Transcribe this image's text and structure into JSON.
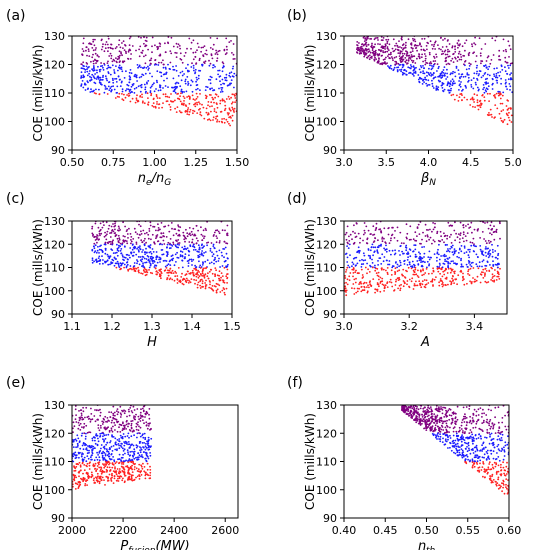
{
  "figure": {
    "colors": {
      "low": "#ff2020",
      "mid": "#1a1aff",
      "high": "#800080"
    },
    "panels": [
      {
        "id": "a"
      },
      {
        "id": "b"
      },
      {
        "id": "c"
      },
      {
        "id": "d"
      },
      {
        "id": "e"
      },
      {
        "id": "f"
      }
    ]
  },
  "chart_data": [
    {
      "panel_label": "(a)",
      "type": "scatter",
      "xlabel": "ne/nG",
      "xlabel_main": "n",
      "xlabel_sub1": "e",
      "xlabel_mid": "/n",
      "xlabel_sub2": "G",
      "ylabel": "COE (mills/kWh)",
      "xlim": [
        0.5,
        1.5
      ],
      "ylim": [
        90,
        130
      ],
      "xticks": [
        "0.50",
        "0.75",
        "1.00",
        "1.25",
        "1.50"
      ],
      "yticks": [
        "90",
        "100",
        "110",
        "120",
        "130"
      ],
      "color_bands": {
        "red_below": 110,
        "blue_below": 120
      },
      "point_cloud": {
        "x_range": [
          0.55,
          1.5
        ],
        "coe_floor_at_xmin": 111,
        "coe_floor_at_xmax": 98,
        "count": 900
      },
      "grid": false
    },
    {
      "panel_label": "(b)",
      "type": "scatter",
      "xlabel": "βN",
      "xlabel_main": "β",
      "xlabel_sub1": "N",
      "ylabel": "COE (mills/kWh)",
      "xlim": [
        3.0,
        5.0
      ],
      "ylim": [
        90,
        130
      ],
      "xticks": [
        "3.0",
        "3.5",
        "4.0",
        "4.5",
        "5.0"
      ],
      "yticks": [
        "90",
        "100",
        "110",
        "120",
        "130"
      ],
      "color_bands": {
        "red_below": 110,
        "blue_below": 120
      },
      "point_cloud": {
        "x_range": [
          3.15,
          5.0
        ],
        "coe_floor_at_xmin": 124,
        "coe_floor_at_xmax": 98,
        "count": 900
      },
      "grid": false
    },
    {
      "panel_label": "(c)",
      "type": "scatter",
      "xlabel": "H",
      "xlabel_main": "H",
      "ylabel": "COE (mills/kWh)",
      "xlim": [
        1.1,
        1.5
      ],
      "ylim": [
        90,
        130
      ],
      "xticks": [
        "1.1",
        "1.2",
        "1.3",
        "1.4",
        "1.5"
      ],
      "yticks": [
        "90",
        "100",
        "110",
        "120",
        "130"
      ],
      "color_bands": {
        "red_below": 110,
        "blue_below": 120
      },
      "point_cloud": {
        "x_range": [
          1.15,
          1.49
        ],
        "coe_floor_at_xmin": 112,
        "coe_floor_at_xmax": 98,
        "count": 900
      },
      "grid": false
    },
    {
      "panel_label": "(d)",
      "type": "scatter",
      "xlabel": "A",
      "xlabel_main": "A",
      "ylabel": "COE (mills/kWh)",
      "xlim": [
        3.0,
        3.5
      ],
      "ylim": [
        90,
        130
      ],
      "xticks": [
        "3.0",
        "3.2",
        "3.4"
      ],
      "yticks": [
        "90",
        "100",
        "110",
        "120",
        "130"
      ],
      "color_bands": {
        "red_below": 110,
        "blue_below": 120
      },
      "point_cloud": {
        "x_range": [
          3.0,
          3.48
        ],
        "coe_floor_at_xmin": 98,
        "coe_floor_at_xmax": 104,
        "count": 900
      },
      "grid": false
    },
    {
      "panel_label": "(e)",
      "type": "scatter",
      "xlabel": "Pfusion(MW)",
      "xlabel_main": "P",
      "xlabel_sub1": "fusion",
      "xlabel_mid": "(MW)",
      "ylabel": "COE (mills/kWh)",
      "xlim": [
        2000,
        2650
      ],
      "ylim": [
        90,
        130
      ],
      "xticks": [
        "2000",
        "2200",
        "2400",
        "2600"
      ],
      "yticks": [
        "90",
        "100",
        "110",
        "120",
        "130"
      ],
      "color_bands": {
        "red_below": 110,
        "blue_below": 120
      },
      "point_cloud": {
        "x_range": [
          2000,
          2310
        ],
        "coe_floor_at_xmin": 100,
        "coe_floor_at_xmax": 104,
        "count": 900
      },
      "grid": false
    },
    {
      "panel_label": "(f)",
      "type": "scatter",
      "xlabel": "ηth",
      "xlabel_main": "η",
      "xlabel_sub1": "th",
      "ylabel": "COE (mills/kWh)",
      "xlim": [
        0.4,
        0.6
      ],
      "ylim": [
        90,
        130
      ],
      "xticks": [
        "0.40",
        "0.45",
        "0.50",
        "0.55",
        "0.60"
      ],
      "yticks": [
        "90",
        "100",
        "110",
        "120",
        "130"
      ],
      "color_bands": {
        "red_below": 110,
        "blue_below": 120
      },
      "point_cloud": {
        "x_range": [
          0.47,
          0.6
        ],
        "coe_floor_at_xmin": 128,
        "coe_floor_at_xmax": 97,
        "count": 900
      },
      "grid": false
    }
  ]
}
